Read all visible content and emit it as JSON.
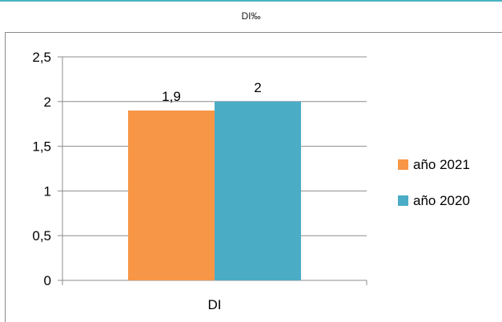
{
  "header": {
    "title": "DI‰"
  },
  "colors": {
    "series_2021": "#f79646",
    "series_2020": "#4bacc6",
    "accent_rule": "#4bb3c1",
    "gridline": "#8c8c8c"
  },
  "chart_data": {
    "type": "bar",
    "title": "DI‰",
    "categories": [
      "DI"
    ],
    "series": [
      {
        "name": "año 2021",
        "values": [
          1.9
        ],
        "color": "#f79646",
        "label": "1,9"
      },
      {
        "name": "año 2020",
        "values": [
          2
        ],
        "color": "#4bacc6",
        "label": "2"
      }
    ],
    "ylim": [
      0,
      2.5
    ],
    "yticks": [
      0,
      0.5,
      1,
      1.5,
      2,
      2.5
    ],
    "ytick_labels": [
      "0",
      "0,5",
      "1",
      "1,5",
      "2",
      "2,5"
    ],
    "grid": true,
    "legend": "right"
  }
}
